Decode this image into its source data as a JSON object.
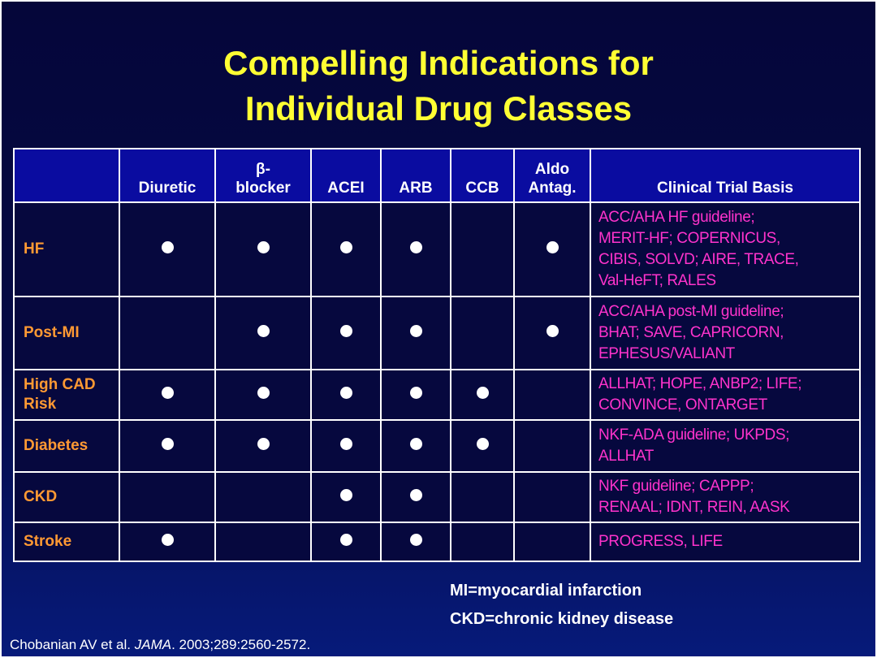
{
  "title": {
    "line1": "Compelling Indications for",
    "line2": "Individual Drug Classes"
  },
  "table": {
    "headers": {
      "diuretic": "Diuretic",
      "beta_line1": "β-",
      "beta_line2": "blocker",
      "acei": "ACEI",
      "arb": "ARB",
      "ccb": "CCB",
      "aldo_line1": "Aldo",
      "aldo_line2": "Antag.",
      "basis": "Clinical Trial Basis"
    },
    "rows": [
      {
        "label_line1": "HF",
        "label_line2": "",
        "diuretic": true,
        "beta_blocker": true,
        "acei": true,
        "arb": true,
        "ccb": false,
        "aldo_antag": true,
        "basis_lines": [
          "ACC/AHA HF guideline;",
          "MERIT-HF; COPERNICUS,",
          "CIBIS, SOLVD; AIRE, TRACE,",
          "Val-HeFT; RALES"
        ]
      },
      {
        "label_line1": "Post-MI",
        "label_line2": "",
        "diuretic": false,
        "beta_blocker": true,
        "acei": true,
        "arb": true,
        "ccb": false,
        "aldo_antag": true,
        "basis_lines": [
          "ACC/AHA post-MI guideline;",
          "BHAT; SAVE, CAPRICORN,",
          "EPHESUS/VALIANT",
          ""
        ]
      },
      {
        "label_line1": "High CAD",
        "label_line2": "Risk",
        "diuretic": true,
        "beta_blocker": true,
        "acei": true,
        "arb": true,
        "ccb": true,
        "aldo_antag": false,
        "basis_lines": [
          "ALLHAT; HOPE, ANBP2; LIFE;",
          "CONVINCE, ONTARGET",
          "",
          ""
        ]
      },
      {
        "label_line1": "Diabetes",
        "label_line2": "",
        "diuretic": true,
        "beta_blocker": true,
        "acei": true,
        "arb": true,
        "ccb": true,
        "aldo_antag": false,
        "basis_lines": [
          "NKF-ADA guideline; UKPDS;",
          "ALLHAT",
          "",
          ""
        ]
      },
      {
        "label_line1": "CKD",
        "label_line2": "",
        "diuretic": false,
        "beta_blocker": false,
        "acei": true,
        "arb": true,
        "ccb": false,
        "aldo_antag": false,
        "basis_lines": [
          "NKF guideline; CAPPP;",
          "RENAAL; IDNT, REIN, AASK",
          "",
          ""
        ]
      },
      {
        "label_line1": "Stroke",
        "label_line2": "",
        "diuretic": true,
        "beta_blocker": false,
        "acei": true,
        "arb": true,
        "ccb": false,
        "aldo_antag": false,
        "basis_lines": [
          "PROGRESS, LIFE",
          "",
          "",
          ""
        ]
      }
    ]
  },
  "abbreviations": {
    "mi": "MI=myocardial infarction",
    "ckd": "CKD=chronic kidney disease"
  },
  "citation": {
    "authors": "Chobanian AV et al. ",
    "journal": "JAMA",
    "details": ". 2003;289:2560-2572."
  },
  "colors": {
    "title": "#ffff33",
    "header_bg": "#0a0ca0",
    "row_label": "#ff9933",
    "trial_text": "#ff33cc",
    "indicator_dot": "#ffffff"
  }
}
